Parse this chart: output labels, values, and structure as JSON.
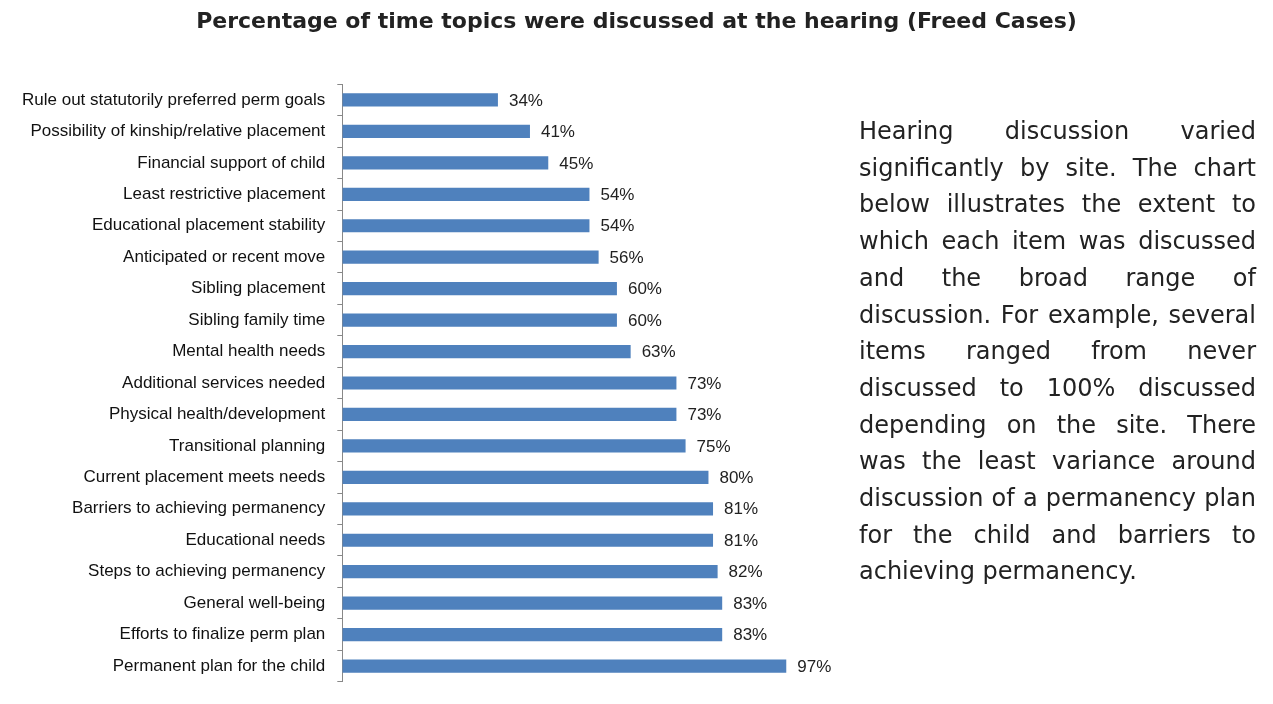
{
  "chart_data": {
    "type": "bar",
    "orientation": "horizontal",
    "title": "Percentage of time topics were discussed at the hearing (Freed Cases)",
    "categories": [
      "Rule out statutorily preferred perm goals",
      "Possibility of kinship/relative placement",
      "Financial support of child",
      "Least restrictive placement",
      "Educational placement stability",
      "Anticipated or recent move",
      "Sibling placement",
      "Sibling family time",
      "Mental health needs",
      "Additional services needed",
      "Physical health/development",
      "Transitional planning",
      "Current placement meets needs",
      "Barriers to achieving permanency",
      "Educational needs",
      "Steps to achieving permanency",
      "General well-being",
      "Efforts to finalize perm plan",
      "Permanent plan for the child"
    ],
    "values": [
      34,
      41,
      45,
      54,
      54,
      56,
      60,
      60,
      63,
      73,
      73,
      75,
      80,
      81,
      81,
      82,
      83,
      83,
      97
    ],
    "value_labels": [
      "34%",
      "41%",
      "45%",
      "54%",
      "54%",
      "56%",
      "60%",
      "60%",
      "63%",
      "73%",
      "73%",
      "75%",
      "80%",
      "81%",
      "81%",
      "82%",
      "83%",
      "83%",
      "97%"
    ],
    "color": "#4f81bd",
    "tick_labels": "y",
    "annotations": [
      "Hearing discussion varied significantly by site. The chart below illustrates the extent to which each item was discussed and the broad range of discussion. For example, several items ranged from never discussed to 100% discussed depending on the site. There was the least variance around discussion of a permanency plan for the child and barriers to achieving permanency."
    ]
  }
}
